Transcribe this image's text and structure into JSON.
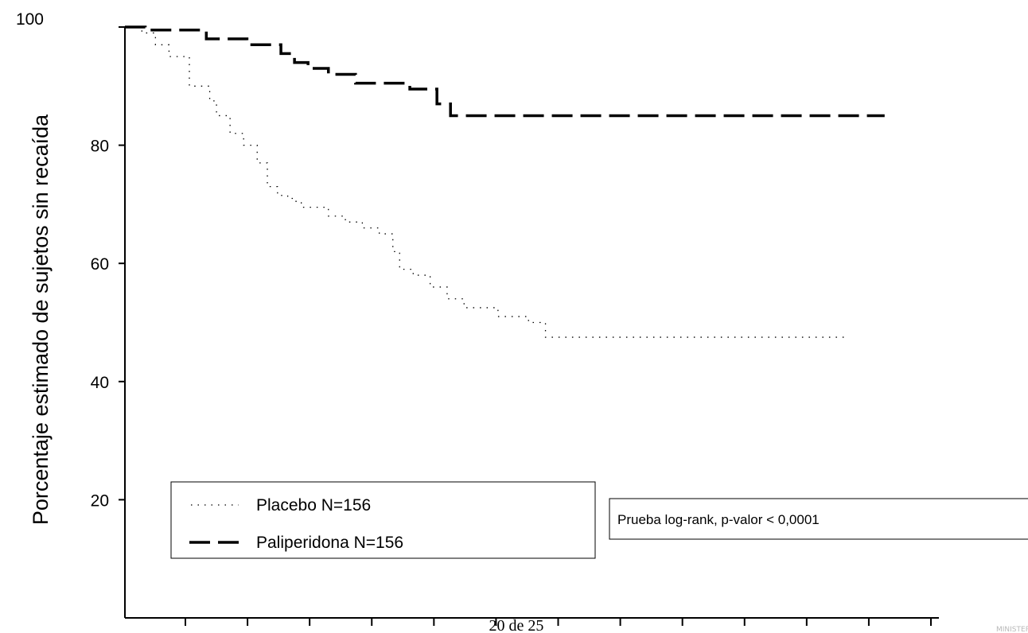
{
  "chart_data": {
    "type": "line",
    "title": "",
    "xlabel": "",
    "ylabel": "Porcentaje estimado de sujetos sin recaída",
    "ylim": [
      0,
      100
    ],
    "y_ticks": [
      "100",
      "80",
      "60",
      "40",
      "20"
    ],
    "x_tick_count": 13,
    "x_tick_labels": [],
    "grid": false,
    "legend_position": "bottom-left",
    "series": [
      {
        "name": "Placebo N=156",
        "style": "dotted",
        "color": "#000000",
        "x": [
          0,
          0.25,
          0.45,
          0.65,
          0.95,
          1.25,
          1.35,
          1.55,
          1.75,
          1.95,
          2.1,
          2.25,
          2.4,
          2.5,
          2.6,
          3.0,
          3.25,
          3.5,
          3.75,
          3.95,
          4.05,
          4.25,
          4.5,
          4.75,
          5.0,
          5.5,
          5.95,
          6.2,
          7.6,
          8.5,
          9.5,
          10.6
        ],
        "y": [
          100,
          99,
          97,
          95,
          90,
          87.5,
          85,
          82,
          80,
          77,
          73,
          71.5,
          71,
          70.5,
          69.5,
          68,
          67,
          66,
          65,
          62,
          59,
          58,
          56,
          54,
          52.5,
          51,
          50,
          47.5,
          47.5,
          47.5,
          47.5,
          47.5
        ]
      },
      {
        "name": "Paliperidona N=156",
        "style": "dashed",
        "color": "#000000",
        "x": [
          0,
          0.3,
          1.2,
          1.8,
          2.3,
          2.5,
          2.7,
          3.0,
          3.4,
          4.2,
          4.6,
          4.8,
          5.0,
          6.0,
          8.0,
          10.0,
          11.2
        ],
        "y": [
          100,
          99.5,
          98,
          97,
          95.5,
          94,
          93,
          92,
          90.5,
          89.5,
          87,
          85,
          85,
          85,
          85,
          85,
          85
        ]
      }
    ],
    "annotation": "Prueba log-rank, p-valor < 0,0001"
  },
  "footer": {
    "page_number": "20 de 25",
    "watermark": "MINISTER"
  }
}
